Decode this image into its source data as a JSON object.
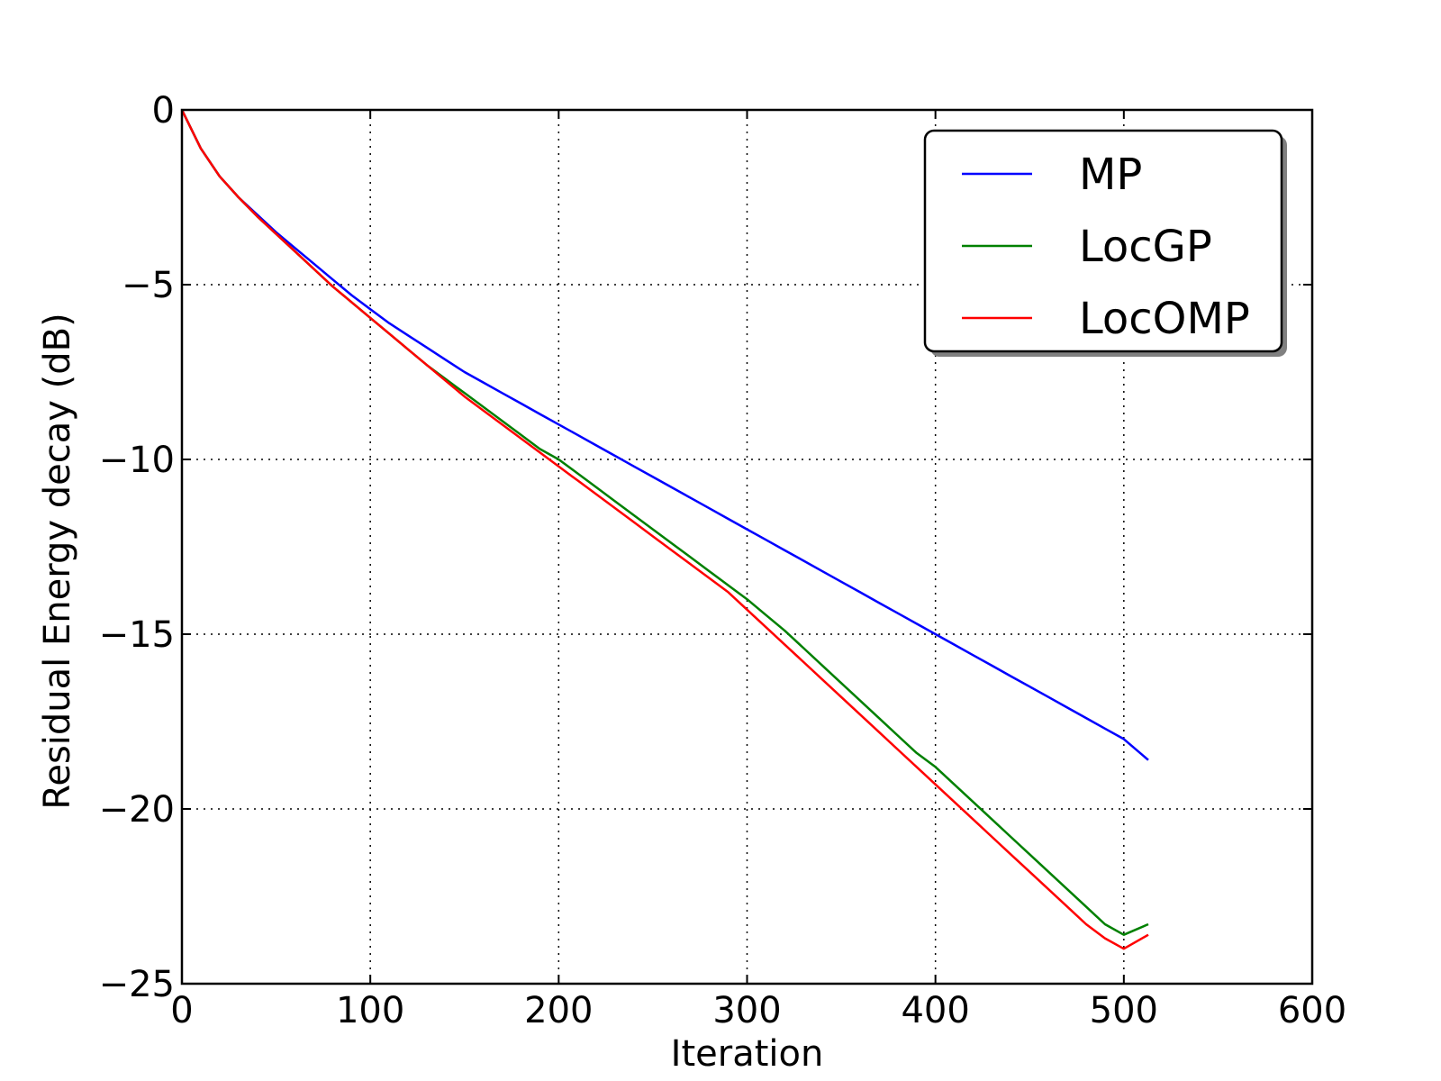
{
  "chart_data": {
    "type": "line",
    "title": "",
    "xlabel": "Iteration",
    "ylabel": "Residual Energy decay (dB)",
    "xlim": [
      0,
      600
    ],
    "ylim": [
      -25,
      0
    ],
    "x_ticks": [
      0,
      100,
      200,
      300,
      400,
      500,
      600
    ],
    "y_ticks": [
      0,
      -5,
      -10,
      -15,
      -20,
      -25
    ],
    "x_tick_labels": [
      "0",
      "100",
      "200",
      "300",
      "400",
      "500",
      "600"
    ],
    "y_tick_labels": [
      "0",
      "−5",
      "−10",
      "−15",
      "−20",
      "−25"
    ],
    "grid": true,
    "legend_position": "top-right",
    "series": [
      {
        "name": "MP",
        "color": "#0000ff",
        "x": [
          0,
          10,
          20,
          30,
          40,
          50,
          60,
          70,
          80,
          90,
          100,
          110,
          120,
          130,
          140,
          150,
          160,
          170,
          180,
          190,
          200,
          210,
          220,
          230,
          240,
          250,
          260,
          270,
          280,
          290,
          300,
          310,
          320,
          330,
          340,
          350,
          360,
          370,
          380,
          390,
          400,
          410,
          420,
          430,
          440,
          450,
          460,
          470,
          480,
          490,
          500,
          513
        ],
        "values": [
          0,
          -1.1,
          -1.9,
          -2.5,
          -3.0,
          -3.5,
          -3.95,
          -4.4,
          -4.85,
          -5.3,
          -5.7,
          -6.1,
          -6.45,
          -6.8,
          -7.15,
          -7.5,
          -7.8,
          -8.1,
          -8.4,
          -8.7,
          -9.0,
          -9.3,
          -9.6,
          -9.9,
          -10.2,
          -10.5,
          -10.8,
          -11.1,
          -11.4,
          -11.7,
          -12.0,
          -12.3,
          -12.6,
          -12.9,
          -13.2,
          -13.5,
          -13.8,
          -14.1,
          -14.4,
          -14.7,
          -15.0,
          -15.3,
          -15.6,
          -15.9,
          -16.2,
          -16.5,
          -16.8,
          -17.1,
          -17.4,
          -17.7,
          -18.0,
          -18.6
        ]
      },
      {
        "name": "LocGP",
        "color": "#008000",
        "x": [
          0,
          10,
          20,
          30,
          40,
          50,
          60,
          70,
          80,
          90,
          100,
          110,
          120,
          130,
          140,
          150,
          160,
          170,
          180,
          190,
          200,
          210,
          220,
          230,
          240,
          250,
          260,
          270,
          280,
          290,
          300,
          310,
          320,
          330,
          340,
          350,
          360,
          370,
          380,
          390,
          400,
          410,
          420,
          430,
          440,
          450,
          460,
          470,
          480,
          490,
          500,
          513
        ],
        "values": [
          0,
          -1.1,
          -1.9,
          -2.5,
          -3.05,
          -3.55,
          -4.05,
          -4.55,
          -5.05,
          -5.5,
          -5.95,
          -6.4,
          -6.85,
          -7.3,
          -7.7,
          -8.1,
          -8.5,
          -8.9,
          -9.3,
          -9.7,
          -10.0,
          -10.4,
          -10.8,
          -11.2,
          -11.6,
          -12.0,
          -12.4,
          -12.8,
          -13.2,
          -13.6,
          -14.0,
          -14.45,
          -14.9,
          -15.4,
          -15.9,
          -16.4,
          -16.9,
          -17.4,
          -17.9,
          -18.4,
          -18.8,
          -19.3,
          -19.8,
          -20.3,
          -20.8,
          -21.3,
          -21.8,
          -22.3,
          -22.8,
          -23.3,
          -23.6,
          -23.3
        ]
      },
      {
        "name": "LocOMP",
        "color": "#ff0000",
        "x": [
          0,
          10,
          20,
          30,
          40,
          50,
          60,
          70,
          80,
          90,
          100,
          110,
          120,
          130,
          140,
          150,
          160,
          170,
          180,
          190,
          200,
          210,
          220,
          230,
          240,
          250,
          260,
          270,
          280,
          290,
          300,
          310,
          320,
          330,
          340,
          350,
          360,
          370,
          380,
          390,
          400,
          410,
          420,
          430,
          440,
          450,
          460,
          470,
          480,
          490,
          500,
          513
        ],
        "values": [
          0,
          -1.1,
          -1.9,
          -2.5,
          -3.05,
          -3.55,
          -4.05,
          -4.55,
          -5.05,
          -5.5,
          -5.95,
          -6.4,
          -6.85,
          -7.3,
          -7.75,
          -8.2,
          -8.6,
          -9.0,
          -9.4,
          -9.8,
          -10.2,
          -10.6,
          -11.0,
          -11.4,
          -11.8,
          -12.2,
          -12.6,
          -13.0,
          -13.4,
          -13.8,
          -14.3,
          -14.8,
          -15.3,
          -15.8,
          -16.3,
          -16.8,
          -17.3,
          -17.8,
          -18.3,
          -18.8,
          -19.3,
          -19.8,
          -20.3,
          -20.8,
          -21.3,
          -21.8,
          -22.3,
          -22.8,
          -23.3,
          -23.7,
          -24.0,
          -23.6
        ]
      }
    ]
  }
}
